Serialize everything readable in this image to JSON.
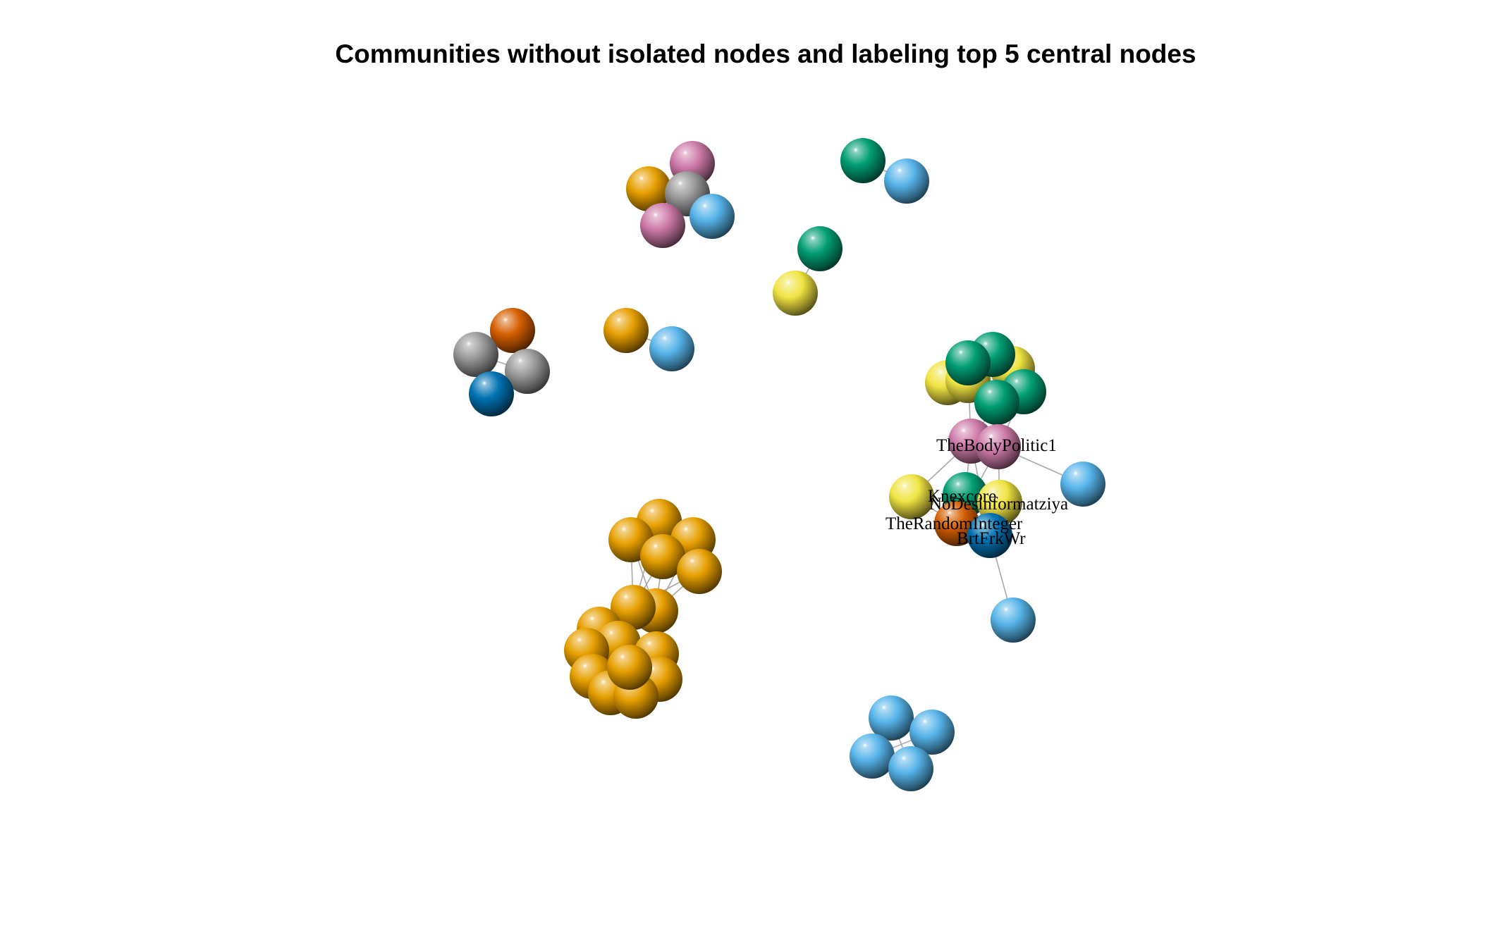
{
  "title": "Communities without isolated nodes and labeling top 5 central nodes",
  "community_colors": {
    "orange": "#e69f00",
    "skyblue": "#56b4e9",
    "green": "#009e73",
    "yellow": "#f0e442",
    "blue": "#0072b2",
    "vermillion": "#d55e00",
    "pink": "#cc79a7",
    "gray": "#999999"
  },
  "labels": {
    "thebodypolitic1": "TheBodyPolitic1",
    "knexcore": "Knexcore",
    "nodesinformatziya": "NoDesinformatziya",
    "therandominteger": "TheRandomInteger",
    "brtfrkwr": "BrtFrkWr"
  }
}
